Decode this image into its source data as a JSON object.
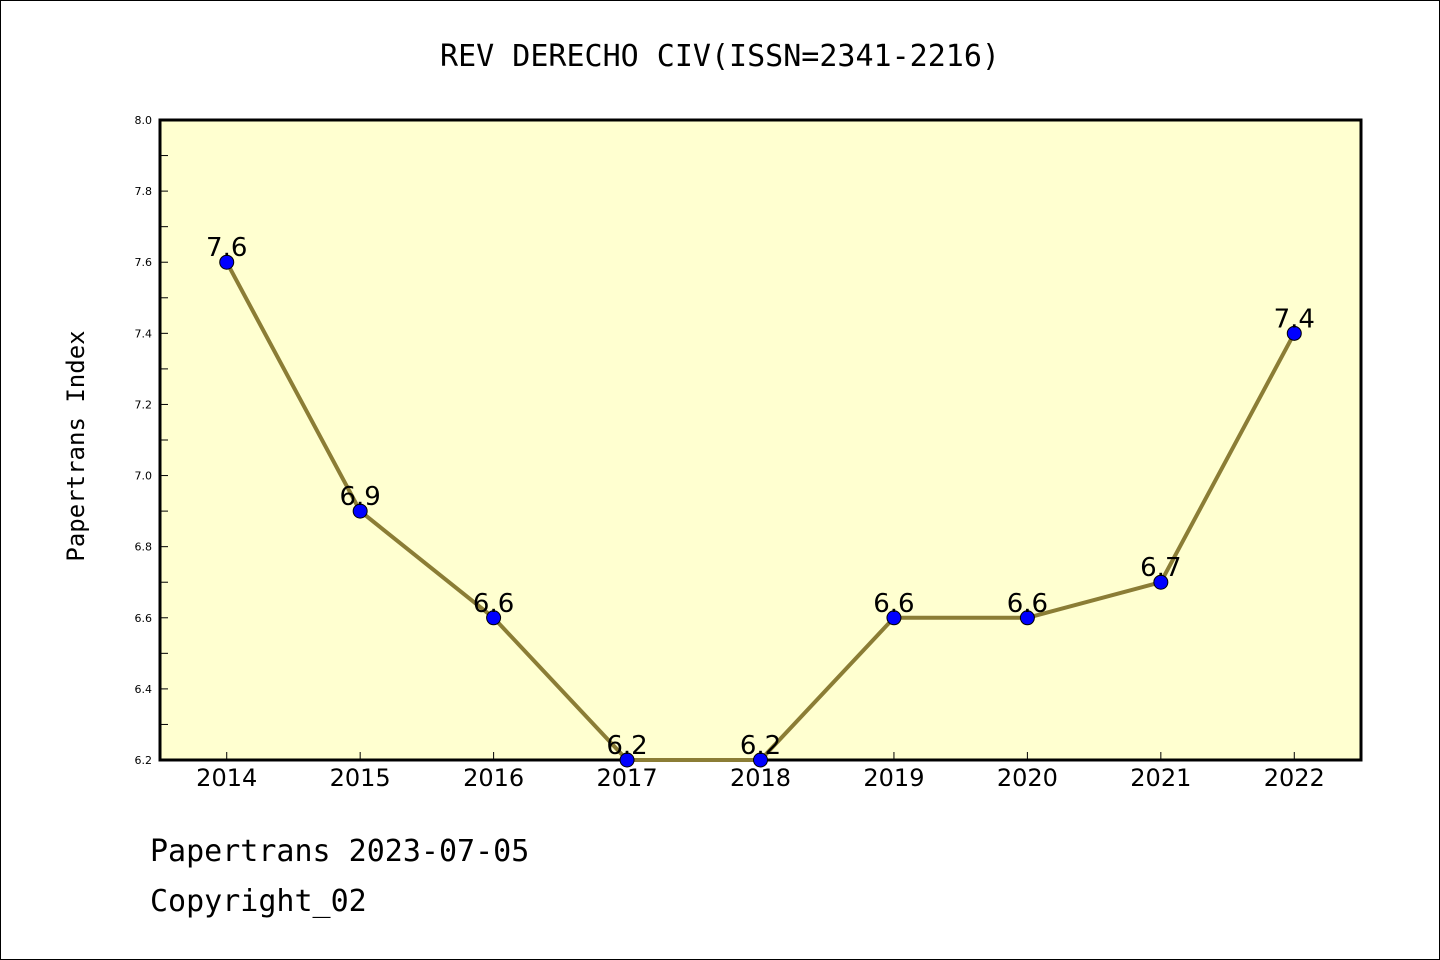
{
  "chart_data": {
    "type": "line",
    "title": "REV DERECHO CIV(ISSN=2341-2216)",
    "ylabel": "Papertrans Index",
    "xlabel": "",
    "categories": [
      "2014",
      "2015",
      "2016",
      "2017",
      "2018",
      "2019",
      "2020",
      "2021",
      "2022"
    ],
    "values": [
      7.6,
      6.9,
      6.6,
      6.2,
      6.2,
      6.6,
      6.6,
      6.7,
      7.4
    ],
    "data_labels": [
      "7.6",
      "6.9",
      "6.6",
      "6.2",
      "6.2",
      "6.6",
      "6.6",
      "6.7",
      "7.4"
    ],
    "ylim": [
      6.2,
      8.0
    ],
    "yticks": [
      "6.2",
      "6.4",
      "6.6",
      "6.8",
      "7.0",
      "7.2",
      "7.4",
      "7.6",
      "7.8",
      "8.0"
    ],
    "grid": false,
    "colors": {
      "plot_background": "#ffffd0",
      "line": "#8b7d35",
      "marker": "#0000ff"
    }
  },
  "footer": {
    "line1": "Papertrans 2023-07-05",
    "line2": "Copyright_02"
  }
}
